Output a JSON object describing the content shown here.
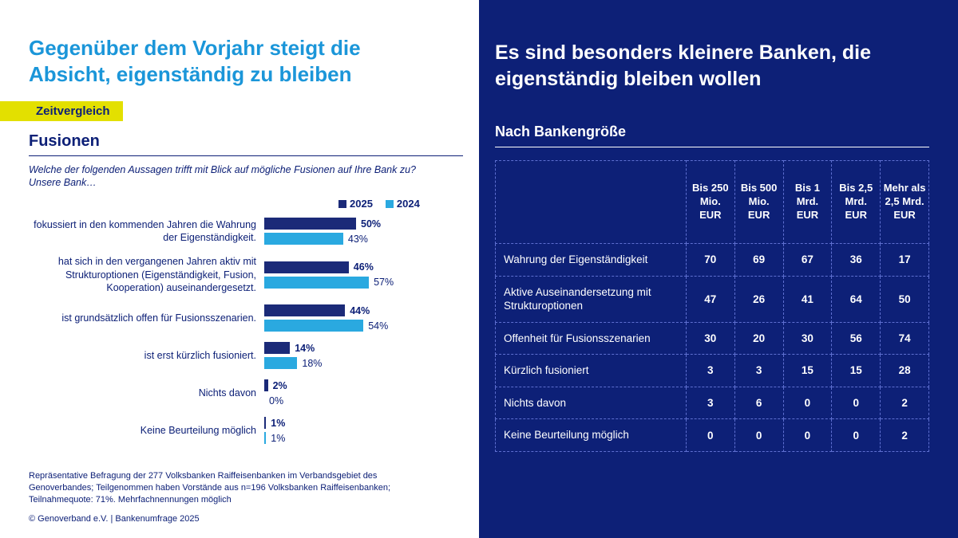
{
  "left": {
    "title": "Gegenüber dem Vorjahr steigt die Absicht, eigenständig zu bleiben",
    "badge": "Zeitvergleich",
    "section_title": "Fusionen",
    "question": "Welche der folgenden Aussagen trifft mit Blick auf mögliche Fusionen auf Ihre Bank zu? Unsere Bank…",
    "footnote": "Repräsentative Befragung der 277 Volksbanken Raiffeisenbanken im Verbandsgebiet des Genoverbandes; Teilgenommen haben Vorstände aus n=196 Volksbanken Raiffeisenbanken; Teilnahmequote: 71%. Mehrfachnennungen möglich",
    "copyright": "© Genoverband e.V. | Bankenumfrage 2025"
  },
  "right": {
    "title": "Es sind besonders kleinere Banken, die eigenständig bleiben wollen",
    "section_title": "Nach Bankengröße"
  },
  "colors": {
    "accent_blue": "#1b96d9",
    "navy": "#0d2077",
    "bar_2025": "#1b2a78",
    "bar_2024": "#2aa9e0",
    "highlight_yellow": "#e3e000",
    "table_border": "#5e6fd0"
  },
  "chart_data": [
    {
      "type": "bar",
      "orientation": "horizontal",
      "title": "Fusionen",
      "categories": [
        "fokussiert in den kommenden Jahren die Wahrung der Eigenständigkeit.",
        "hat sich in den vergangenen Jahren aktiv mit Strukturoptionen (Eigenständigkeit, Fusion, Kooperation) auseinandergesetzt.",
        "ist grundsätzlich offen für Fusionsszenarien.",
        "ist erst kürzlich fusioniert.",
        "Nichts davon",
        "Keine Beurteilung möglich"
      ],
      "series": [
        {
          "name": "2025",
          "values": [
            50,
            46,
            44,
            14,
            2,
            1
          ]
        },
        {
          "name": "2024",
          "values": [
            43,
            57,
            54,
            18,
            0,
            1
          ]
        }
      ],
      "value_suffix": "%",
      "xlim": [
        0,
        60
      ],
      "legend_position": "top",
      "grid": false
    },
    {
      "type": "table",
      "title": "Nach Bankengröße",
      "columns": [
        "Bis 250 Mio. EUR",
        "Bis 500 Mio. EUR",
        "Bis 1 Mrd. EUR",
        "Bis 2,5 Mrd. EUR",
        "Mehr als 2,5 Mrd. EUR"
      ],
      "rows": [
        {
          "label": "Wahrung der Eigenständigkeit",
          "values": [
            70,
            69,
            67,
            36,
            17
          ]
        },
        {
          "label": "Aktive Auseinandersetzung mit Strukturoptionen",
          "values": [
            47,
            26,
            41,
            64,
            50
          ]
        },
        {
          "label": "Offenheit für Fusionsszenarien",
          "values": [
            30,
            20,
            30,
            56,
            74
          ]
        },
        {
          "label": "Kürzlich fusioniert",
          "values": [
            3,
            3,
            15,
            15,
            28
          ]
        },
        {
          "label": "Nichts davon",
          "values": [
            3,
            6,
            0,
            0,
            2
          ]
        },
        {
          "label": "Keine Beurteilung möglich",
          "values": [
            0,
            0,
            0,
            0,
            2
          ]
        }
      ]
    }
  ]
}
